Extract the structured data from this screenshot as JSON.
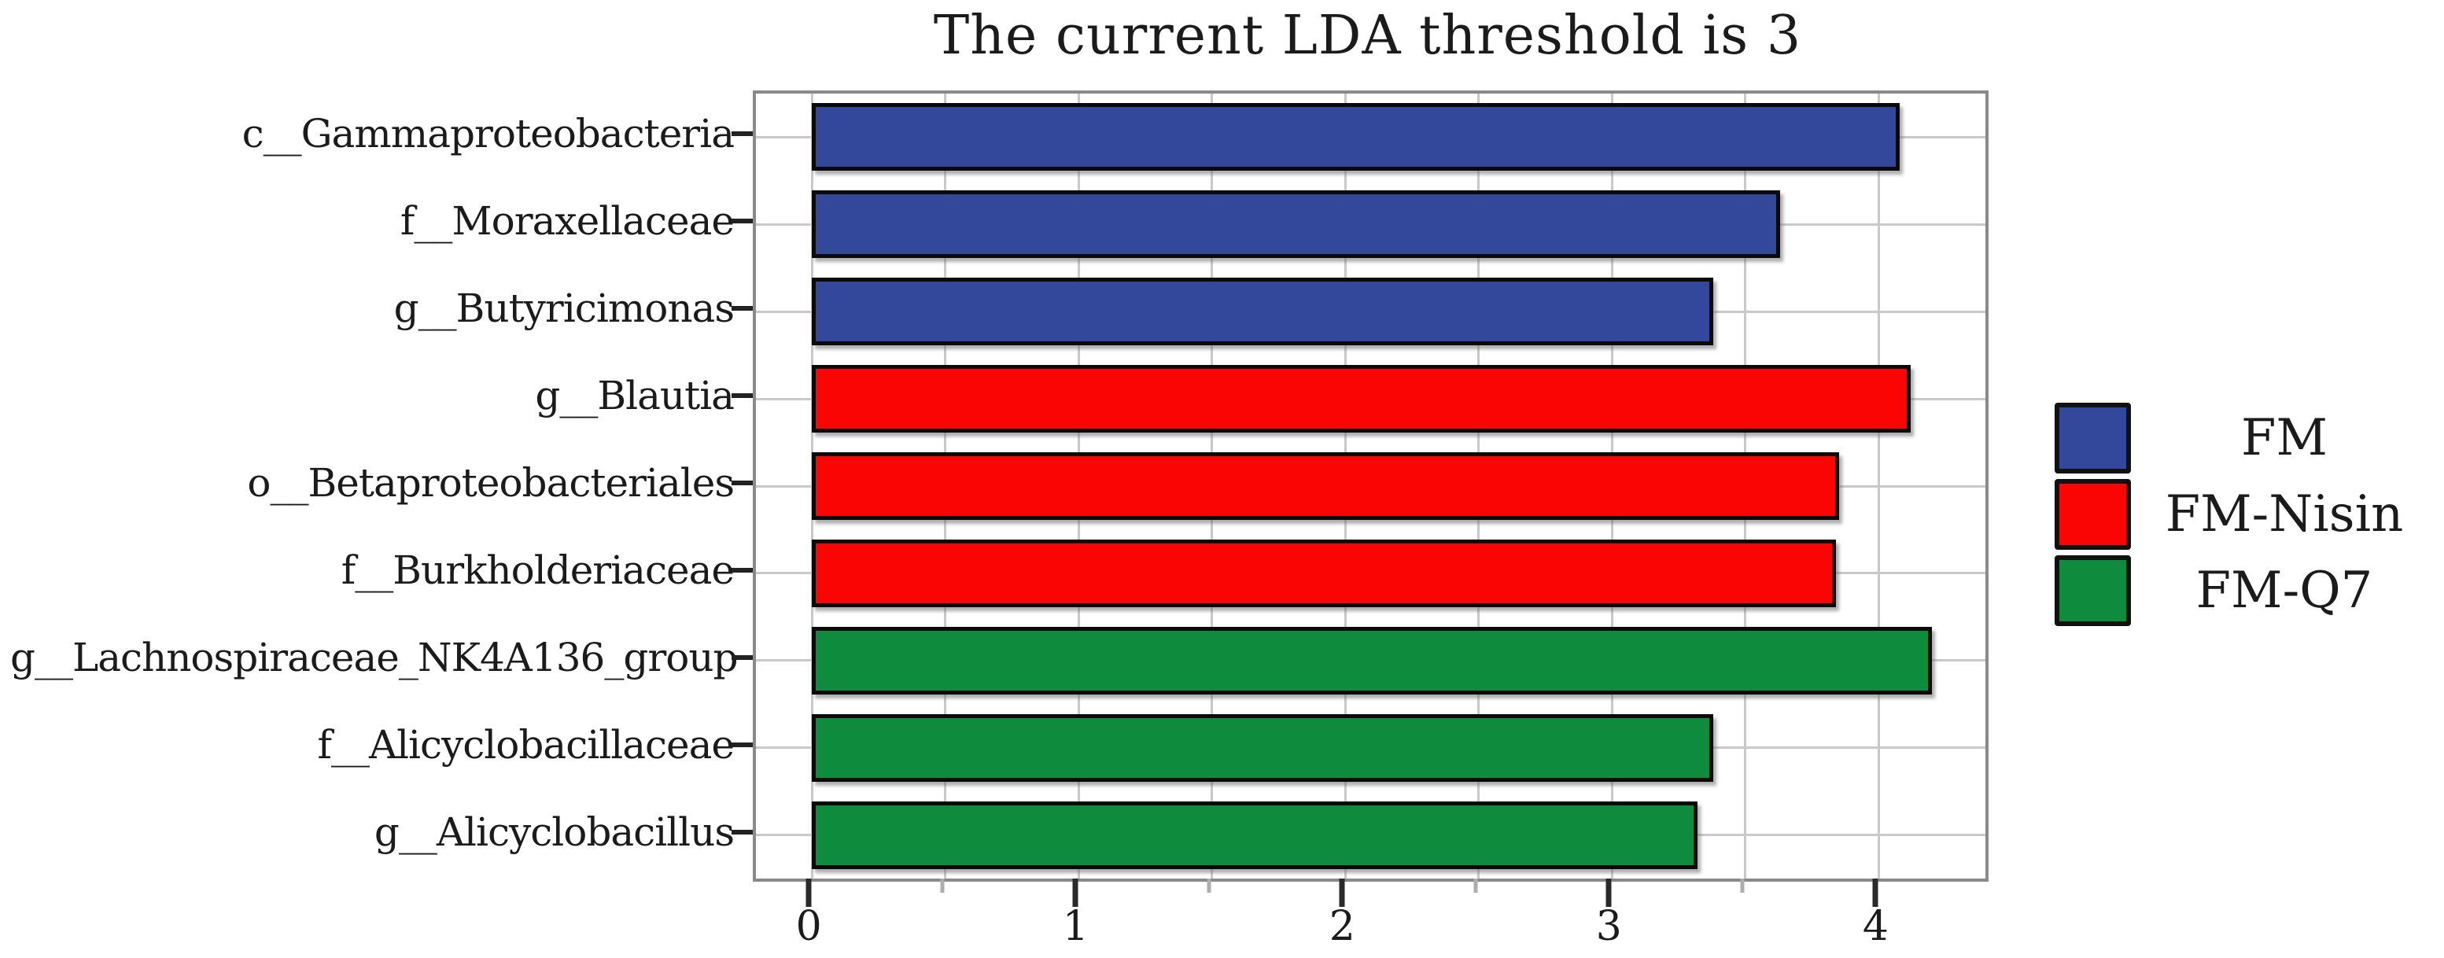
{
  "title": "The current LDA threshold is 3",
  "chart_data": {
    "type": "bar",
    "orientation": "horizontal",
    "title": "The current LDA threshold is 3",
    "xlabel": "",
    "ylabel": "",
    "categories": [
      "c__Gammaproteobacteria",
      "f__Moraxellaceae",
      "g__Butyricimonas",
      "g__Blautia",
      "o__Betaproteobacteriales",
      "f__Burkholderiaceae",
      "g__Lachnospiraceae_NK4A136_group",
      "f__Alicyclobacillaceae",
      "g__Alicyclobacillus"
    ],
    "values": [
      4.08,
      3.63,
      3.38,
      4.12,
      3.85,
      3.84,
      4.2,
      3.38,
      3.32
    ],
    "groups": [
      "FM",
      "FM",
      "FM",
      "FM-Nisin",
      "FM-Nisin",
      "FM-Nisin",
      "FM-Q7",
      "FM-Q7",
      "FM-Q7"
    ],
    "xlim": [
      -0.21,
      4.4
    ],
    "xticks": [
      0,
      1,
      2,
      3,
      4
    ],
    "xtick_labels": [
      "0",
      "1",
      "2",
      "3",
      "4"
    ],
    "minor_tick_step": 0.5,
    "grid": true,
    "legend_position": "right",
    "legend": [
      {
        "label": "FM",
        "color": "#33479B"
      },
      {
        "label": "FM-Nisin",
        "color": "#FA0404"
      },
      {
        "label": "FM-Q7",
        "color": "#0E8B3D"
      }
    ]
  },
  "colors": {
    "FM": "#33479B",
    "FM-Nisin": "#FA0404",
    "FM-Q7": "#0E8B3D",
    "grid": "#c9c9c9",
    "spine": "#8a8a8a",
    "bar_border": "#0a0a0a",
    "text": "#1b1b1b"
  }
}
